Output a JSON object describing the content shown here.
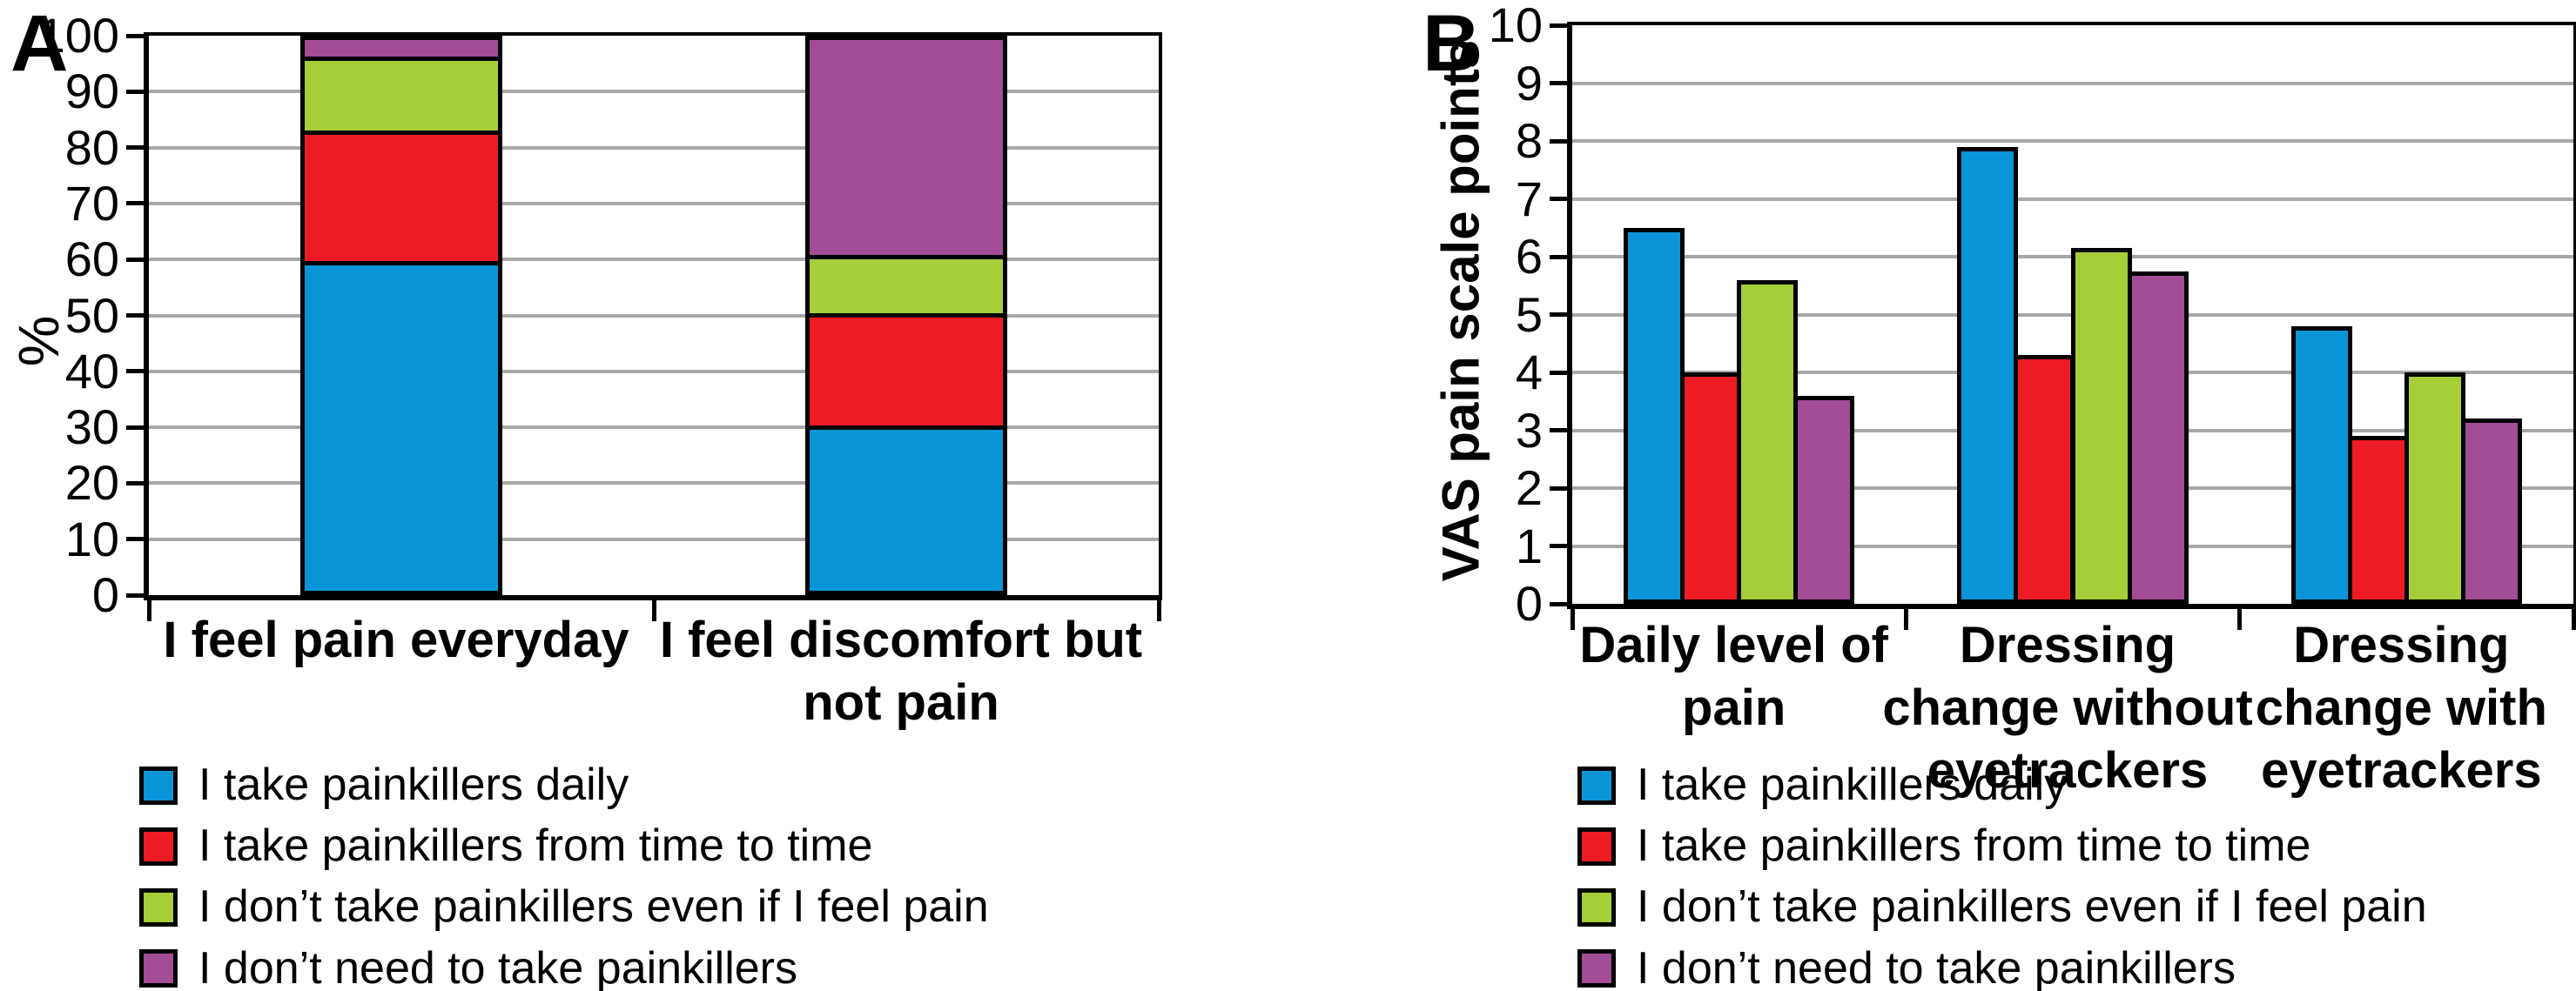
{
  "colors": {
    "blue": "#0a95d8",
    "red": "#ed1c24",
    "green": "#a6ce39",
    "purple": "#a24d96",
    "gridline": "#a8a8a8",
    "axis": "#000000"
  },
  "panel_a": {
    "letter": "A",
    "ylabel": "%"
  },
  "panel_b": {
    "letter": "B",
    "ylabel": "VAS pain scale points"
  },
  "legend": {
    "items": [
      {
        "key": "painkillers-daily",
        "label": "I take painkillers daily",
        "color": "#0a95d8"
      },
      {
        "key": "painkillers-time-to-time",
        "label": "I take painkillers from time to time",
        "color": "#ed1c24"
      },
      {
        "key": "no-painkillers-even-if-pain",
        "label": "I don’t take painkillers even if I feel pain",
        "color": "#a6ce39"
      },
      {
        "key": "no-need-painkillers",
        "label": "I don’t need to take painkillers",
        "color": "#a24d96"
      }
    ]
  },
  "chart_data": [
    {
      "type": "stacked-bar",
      "panel": "A",
      "ylabel": "%",
      "ylim": [
        0,
        100
      ],
      "ytick_step": 10,
      "yticks": [
        0,
        10,
        20,
        30,
        40,
        50,
        60,
        70,
        80,
        90,
        100
      ],
      "grid": true,
      "legend_position": "bottom",
      "categories": [
        "I feel pain everyday",
        "I feel discomfort but not pain"
      ],
      "category_lines": [
        [
          "I feel pain everyday"
        ],
        [
          "I feel discomfort but",
          "not pain"
        ]
      ],
      "series": [
        {
          "name": "I take painkillers daily",
          "color": "#0a95d8",
          "values": [
            60.5,
            30
          ]
        },
        {
          "name": "I take painkillers from time to time",
          "color": "#ed1c24",
          "values": [
            23.5,
            20
          ]
        },
        {
          "name": "I don’t take painkillers even if I feel pain",
          "color": "#a6ce39",
          "values": [
            13,
            10
          ]
        },
        {
          "name": "I don’t need to take painkillers",
          "color": "#a24d96",
          "values": [
            3,
            40
          ]
        }
      ]
    },
    {
      "type": "bar",
      "panel": "B",
      "ylabel": "VAS pain scale points",
      "ylim": [
        0,
        10
      ],
      "ytick_step": 1,
      "yticks": [
        0,
        1,
        2,
        3,
        4,
        5,
        6,
        7,
        8,
        9,
        10
      ],
      "grid": true,
      "legend_position": "bottom",
      "categories": [
        "Daily level of pain",
        "Dressing change without eyetrackers",
        "Dressing change with eyetrackers"
      ],
      "category_lines": [
        [
          "Daily level of",
          "pain"
        ],
        [
          "Dressing",
          "change without",
          "eyetrackers"
        ],
        [
          "Dressing",
          "change with",
          "eyetrackers"
        ]
      ],
      "series": [
        {
          "name": "I take painkillers daily",
          "color": "#0a95d8",
          "values": [
            6.5,
            7.9,
            4.8
          ]
        },
        {
          "name": "I take painkillers from time to time",
          "color": "#ed1c24",
          "values": [
            4.0,
            4.3,
            2.9
          ]
        },
        {
          "name": "I don’t take painkillers even if I feel pain",
          "color": "#a6ce39",
          "values": [
            5.6,
            6.15,
            4.0
          ]
        },
        {
          "name": "I don’t need to take painkillers",
          "color": "#a24d96",
          "values": [
            3.6,
            5.75,
            3.2
          ]
        }
      ]
    }
  ]
}
